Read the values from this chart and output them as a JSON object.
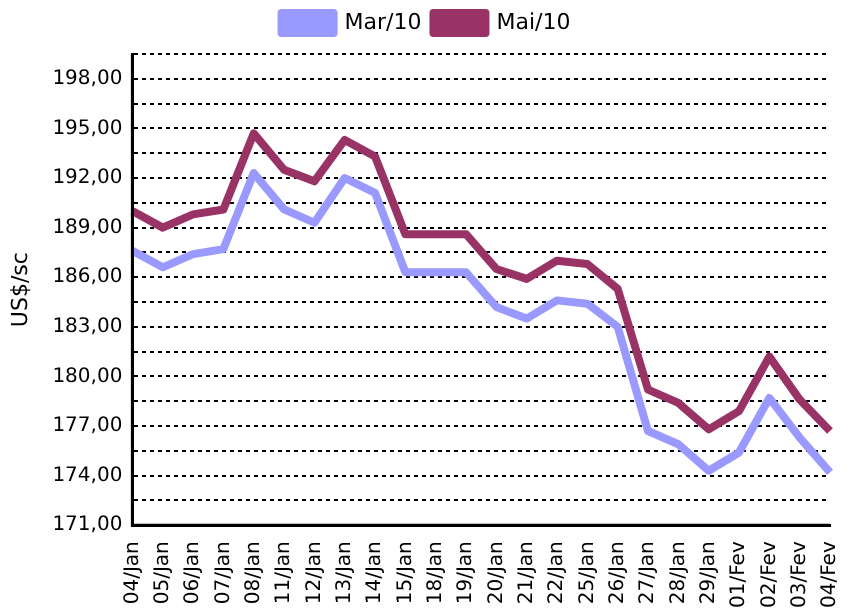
{
  "chart_data": {
    "type": "line",
    "ylabel": "US$/sc",
    "categories": [
      "04/Jan",
      "05/Jan",
      "06/Jan",
      "07/Jan",
      "08/Jan",
      "11/Jan",
      "12/Jan",
      "13/Jan",
      "14/Jan",
      "15/Jan",
      "18/Jan",
      "19/Jan",
      "20/Jan",
      "21/Jan",
      "22/Jan",
      "25/Jan",
      "26/Jan",
      "27/Jan",
      "28/Jan",
      "29/Jan",
      "01/Fev",
      "02/Fev",
      "03/Fev",
      "04/Fev"
    ],
    "series": [
      {
        "name": "Mar/10",
        "color": "#9999ff",
        "values": [
          187.6,
          186.6,
          187.4,
          187.7,
          192.3,
          190.1,
          189.3,
          192.0,
          191.1,
          186.3,
          186.3,
          186.3,
          184.2,
          183.5,
          184.6,
          184.4,
          183.0,
          176.7,
          175.9,
          174.3,
          175.4,
          178.7,
          176.3,
          174.2
        ]
      },
      {
        "name": "Mai/10",
        "color": "#993366",
        "values": [
          190.0,
          189.0,
          189.8,
          190.1,
          194.7,
          192.5,
          191.8,
          194.3,
          193.3,
          188.6,
          188.6,
          188.6,
          186.5,
          185.9,
          187.0,
          186.8,
          185.3,
          179.2,
          178.4,
          176.8,
          177.9,
          181.2,
          178.6,
          176.7
        ]
      }
    ],
    "ylim": [
      171,
      199.5
    ],
    "yticks": [
      {
        "value": 171,
        "label": "171,00"
      },
      {
        "value": 172.5,
        "label": null
      },
      {
        "value": 174,
        "label": "174,00"
      },
      {
        "value": 175.5,
        "label": null
      },
      {
        "value": 177,
        "label": "177,00"
      },
      {
        "value": 178.5,
        "label": null
      },
      {
        "value": 180,
        "label": "180,00"
      },
      {
        "value": 181.5,
        "label": null
      },
      {
        "value": 183,
        "label": "183,00"
      },
      {
        "value": 184.5,
        "label": null
      },
      {
        "value": 186,
        "label": "186,00"
      },
      {
        "value": 187.5,
        "label": null
      },
      {
        "value": 189,
        "label": "189,00"
      },
      {
        "value": 190.5,
        "label": null
      },
      {
        "value": 192,
        "label": "192,00"
      },
      {
        "value": 193.5,
        "label": null
      },
      {
        "value": 195,
        "label": "195,00"
      },
      {
        "value": 196.5,
        "label": null
      },
      {
        "value": 198,
        "label": "198,00"
      },
      {
        "value": 199.5,
        "label": null
      }
    ],
    "grid": "y",
    "legend": "top",
    "marker": "none",
    "line_style": "solid"
  }
}
